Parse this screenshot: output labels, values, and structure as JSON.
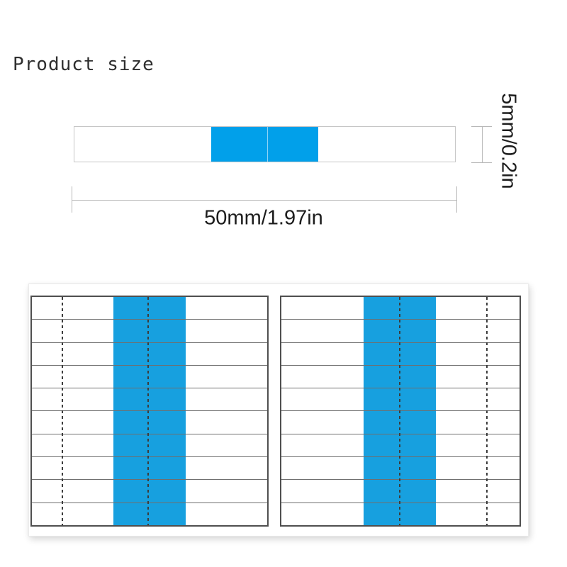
{
  "title": {
    "text": "Product size"
  },
  "strip_diagram": {
    "height_label": "5mm/0.2in",
    "width_label": "50mm/1.97in"
  },
  "sheet": {
    "rows_per_panel": 10,
    "panels": [
      {
        "id": "left",
        "guide_line_side": "left"
      },
      {
        "id": "right",
        "guide_line_side": "right"
      }
    ]
  },
  "colors": {
    "strip_blue": "#01A0EA",
    "panel_blue": "#17A0DF",
    "strip_border": "#c6c6c6",
    "dimension_line": "#b8b8b8",
    "panel_border": "#4f4f4f",
    "row_line": "#6f6f6f",
    "dash": "#3c3c3c"
  }
}
